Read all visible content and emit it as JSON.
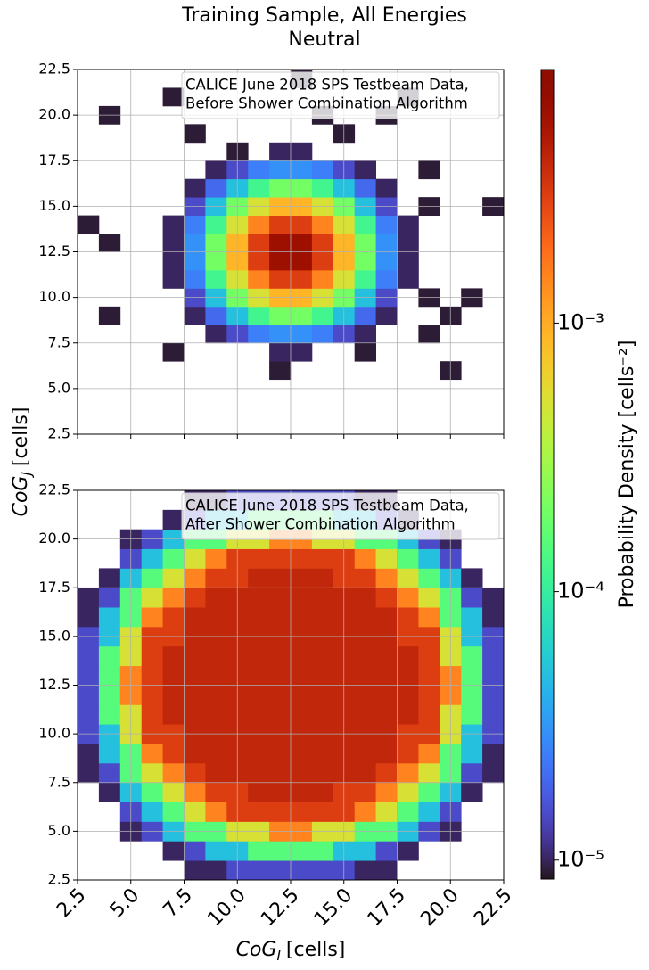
{
  "chart_data": {
    "type": "heatmap",
    "title": [
      "Training Sample, All Energies",
      "Neutral"
    ],
    "xlabel": {
      "symbol": "CoG",
      "subscript": "I",
      "unit": "[cells]"
    },
    "ylabel": {
      "symbol": "CoG",
      "subscript": "J",
      "unit": "[cells]"
    },
    "xlim": [
      2.5,
      22.5
    ],
    "ylim": [
      2.5,
      22.5
    ],
    "xticks": [
      2.5,
      {
        "value": 5,
        "label": "5.0"
      },
      7.5,
      {
        "value": 10,
        "label": "10.0"
      },
      12.5,
      {
        "value": 15,
        "label": "15.0"
      },
      17.5,
      {
        "value": 20,
        "label": "20.0"
      },
      22.5
    ],
    "yticks": [
      2.5,
      {
        "value": 5,
        "label": "5.0"
      },
      7.5,
      {
        "value": 10,
        "label": "10.0"
      },
      12.5,
      {
        "value": 15,
        "label": "15.0"
      },
      17.5,
      {
        "value": 20,
        "label": "20.0"
      },
      22.5
    ],
    "xbins": [
      2.5,
      3.5,
      4.5,
      5.5,
      6.5,
      7.5,
      8.5,
      9.5,
      10.5,
      11.5,
      12.5,
      13.5,
      14.5,
      15.5,
      16.5,
      17.5,
      18.5,
      19.5,
      20.5,
      21.5,
      22.5
    ],
    "ybins": [
      2.5,
      3.5,
      4.5,
      5.5,
      6.5,
      7.5,
      8.5,
      9.5,
      10.5,
      11.5,
      12.5,
      13.5,
      14.5,
      15.5,
      16.5,
      17.5,
      18.5,
      19.5,
      20.5,
      21.5,
      22.5
    ],
    "grid": true,
    "colormap": "turbo",
    "colorbar": {
      "label": "Probability Density [cells⁻²]",
      "scale": "log",
      "lim": [
        8.5e-06,
        0.0088
      ],
      "ticks": [
        {
          "value": 1e-05,
          "label": "10⁻⁵"
        },
        {
          "value": 0.0001,
          "label": "10⁻⁴"
        },
        {
          "value": 0.001,
          "label": "10⁻³"
        }
      ]
    },
    "panels": [
      {
        "annotation": [
          "CALICE June 2018 SPS Testbeam Data,",
          "Before Shower Combination Algorithm"
        ],
        "z": [
          [
            null,
            null,
            null,
            null,
            null,
            null,
            null,
            null,
            null,
            null,
            null,
            null,
            null,
            null,
            null,
            null,
            null,
            null,
            null,
            null
          ],
          [
            null,
            null,
            null,
            null,
            null,
            null,
            null,
            null,
            null,
            null,
            null,
            null,
            null,
            null,
            null,
            null,
            null,
            null,
            null,
            null
          ],
          [
            null,
            null,
            null,
            null,
            null,
            null,
            null,
            null,
            null,
            null,
            null,
            null,
            null,
            null,
            null,
            null,
            null,
            null,
            null,
            null
          ],
          [
            null,
            null,
            null,
            null,
            null,
            null,
            null,
            null,
            null,
            9e-06,
            null,
            null,
            null,
            null,
            null,
            null,
            null,
            9e-06,
            null,
            null
          ],
          [
            null,
            null,
            null,
            null,
            9e-06,
            null,
            null,
            null,
            null,
            1e-05,
            1e-05,
            null,
            null,
            9e-06,
            null,
            null,
            null,
            null,
            null,
            null
          ],
          [
            null,
            null,
            null,
            null,
            null,
            null,
            1e-05,
            1.5e-05,
            2.5e-05,
            3e-05,
            3e-05,
            2.5e-05,
            1.5e-05,
            1e-05,
            null,
            null,
            9e-06,
            null,
            null,
            null
          ],
          [
            null,
            9e-06,
            null,
            null,
            null,
            1e-05,
            2e-05,
            5e-05,
            0.00012,
            0.0002,
            0.0002,
            0.00012,
            5e-05,
            2e-05,
            1e-05,
            null,
            null,
            9e-06,
            null,
            null
          ],
          [
            null,
            null,
            null,
            null,
            null,
            1.5e-05,
            5e-05,
            0.0002,
            0.0005,
            0.0009,
            0.0009,
            0.0005,
            0.0002,
            5e-05,
            1.5e-05,
            null,
            9e-06,
            null,
            9e-06,
            null
          ],
          [
            null,
            null,
            null,
            null,
            1e-05,
            2.5e-05,
            0.00012,
            0.0005,
            0.0015,
            0.003,
            0.003,
            0.0015,
            0.0005,
            0.00012,
            2.5e-05,
            1e-05,
            null,
            null,
            null,
            null
          ],
          [
            null,
            null,
            null,
            null,
            1e-05,
            3e-05,
            0.0002,
            0.0009,
            0.003,
            0.006,
            0.006,
            0.003,
            0.0009,
            0.0002,
            3e-05,
            1e-05,
            null,
            null,
            null,
            null
          ],
          [
            null,
            9e-06,
            null,
            null,
            1e-05,
            3e-05,
            0.0002,
            0.0009,
            0.003,
            0.006,
            0.006,
            0.003,
            0.0009,
            0.0002,
            3e-05,
            1e-05,
            null,
            null,
            null,
            null
          ],
          [
            9e-06,
            null,
            null,
            null,
            1e-05,
            2.5e-05,
            0.00012,
            0.0005,
            0.0015,
            0.003,
            0.003,
            0.0015,
            0.0005,
            0.00012,
            2.5e-05,
            1e-05,
            null,
            null,
            null,
            null
          ],
          [
            null,
            null,
            null,
            null,
            null,
            1.5e-05,
            5e-05,
            0.0002,
            0.0005,
            0.0009,
            0.0009,
            0.0005,
            0.0002,
            5e-05,
            1.5e-05,
            null,
            9e-06,
            null,
            null,
            9e-06
          ],
          [
            null,
            null,
            null,
            null,
            null,
            1e-05,
            2e-05,
            5e-05,
            0.00012,
            0.0002,
            0.0002,
            0.00012,
            5e-05,
            2e-05,
            1e-05,
            null,
            null,
            null,
            null,
            null
          ],
          [
            null,
            null,
            null,
            null,
            null,
            null,
            1e-05,
            1.5e-05,
            2.5e-05,
            3e-05,
            3e-05,
            2.5e-05,
            1.5e-05,
            1e-05,
            null,
            null,
            9e-06,
            null,
            null,
            null
          ],
          [
            null,
            null,
            null,
            null,
            null,
            null,
            null,
            9e-06,
            null,
            1e-05,
            1e-05,
            null,
            null,
            null,
            null,
            null,
            null,
            null,
            null,
            null
          ],
          [
            null,
            null,
            null,
            null,
            null,
            9e-06,
            null,
            null,
            null,
            null,
            null,
            null,
            9e-06,
            null,
            null,
            null,
            null,
            null,
            null,
            null
          ],
          [
            null,
            9e-06,
            null,
            null,
            null,
            null,
            null,
            null,
            null,
            null,
            null,
            9e-06,
            null,
            null,
            9e-06,
            null,
            null,
            null,
            null,
            null
          ],
          [
            null,
            null,
            null,
            null,
            9e-06,
            null,
            null,
            null,
            null,
            null,
            null,
            null,
            null,
            null,
            null,
            9e-06,
            null,
            null,
            null,
            null
          ],
          [
            null,
            null,
            null,
            null,
            null,
            null,
            null,
            null,
            null,
            null,
            9e-06,
            null,
            null,
            null,
            null,
            null,
            null,
            null,
            null,
            null
          ]
        ]
      },
      {
        "annotation": [
          "CALICE June 2018 SPS Testbeam Data,",
          "After Shower Combination Algorithm"
        ],
        "z": [
          [
            null,
            null,
            null,
            null,
            null,
            1e-05,
            1e-05,
            1.5e-05,
            1.5e-05,
            1.5e-05,
            1.5e-05,
            1.5e-05,
            1.5e-05,
            1e-05,
            1e-05,
            null,
            null,
            null,
            null,
            null
          ],
          [
            null,
            null,
            null,
            null,
            1e-05,
            1.5e-05,
            5e-05,
            5e-05,
            0.00015,
            0.00015,
            0.00015,
            0.00015,
            5e-05,
            5e-05,
            1.5e-05,
            1e-05,
            null,
            null,
            null,
            null
          ],
          [
            null,
            null,
            1e-05,
            1.5e-05,
            5e-05,
            0.00015,
            0.00015,
            0.0005,
            0.0005,
            0.0015,
            0.0015,
            0.0005,
            0.0005,
            0.00015,
            0.00015,
            5e-05,
            1.5e-05,
            1e-05,
            null,
            null
          ],
          [
            null,
            null,
            1.5e-05,
            5e-05,
            0.00015,
            0.0005,
            0.0015,
            0.003,
            0.003,
            0.003,
            0.003,
            0.003,
            0.003,
            0.0015,
            0.0005,
            0.00015,
            5e-05,
            1.5e-05,
            null,
            null
          ],
          [
            null,
            1e-05,
            5e-05,
            0.00015,
            0.0005,
            0.0015,
            0.003,
            0.003,
            0.004,
            0.004,
            0.004,
            0.004,
            0.003,
            0.003,
            0.0015,
            0.0005,
            0.00015,
            5e-05,
            1e-05,
            null
          ],
          [
            1e-05,
            1.5e-05,
            0.00015,
            0.0005,
            0.0015,
            0.003,
            0.004,
            0.004,
            0.004,
            0.004,
            0.004,
            0.004,
            0.004,
            0.004,
            0.003,
            0.0015,
            0.0005,
            0.00015,
            1.5e-05,
            1e-05
          ],
          [
            1e-05,
            5e-05,
            0.00015,
            0.0015,
            0.003,
            0.004,
            0.004,
            0.004,
            0.004,
            0.004,
            0.004,
            0.004,
            0.004,
            0.004,
            0.004,
            0.003,
            0.0015,
            0.00015,
            5e-05,
            1e-05
          ],
          [
            1.5e-05,
            5e-05,
            0.0005,
            0.003,
            0.003,
            0.004,
            0.004,
            0.004,
            0.004,
            0.004,
            0.004,
            0.004,
            0.004,
            0.004,
            0.004,
            0.003,
            0.003,
            0.0005,
            5e-05,
            1.5e-05
          ],
          [
            1.5e-05,
            0.00015,
            0.0005,
            0.003,
            0.004,
            0.004,
            0.004,
            0.004,
            0.004,
            0.004,
            0.004,
            0.004,
            0.004,
            0.004,
            0.004,
            0.004,
            0.003,
            0.0005,
            0.00015,
            1.5e-05
          ],
          [
            1.5e-05,
            0.00015,
            0.0015,
            0.003,
            0.004,
            0.004,
            0.004,
            0.004,
            0.004,
            0.004,
            0.004,
            0.004,
            0.004,
            0.004,
            0.004,
            0.004,
            0.003,
            0.0015,
            0.00015,
            1.5e-05
          ],
          [
            1.5e-05,
            0.00015,
            0.0015,
            0.003,
            0.004,
            0.004,
            0.004,
            0.004,
            0.004,
            0.004,
            0.004,
            0.004,
            0.004,
            0.004,
            0.004,
            0.004,
            0.003,
            0.0015,
            0.00015,
            1.5e-05
          ],
          [
            1.5e-05,
            0.00015,
            0.0005,
            0.003,
            0.004,
            0.004,
            0.004,
            0.004,
            0.004,
            0.004,
            0.004,
            0.004,
            0.004,
            0.004,
            0.004,
            0.004,
            0.003,
            0.0005,
            0.00015,
            1.5e-05
          ],
          [
            1.5e-05,
            5e-05,
            0.0005,
            0.003,
            0.003,
            0.004,
            0.004,
            0.004,
            0.004,
            0.004,
            0.004,
            0.004,
            0.004,
            0.004,
            0.004,
            0.003,
            0.003,
            0.0005,
            5e-05,
            1.5e-05
          ],
          [
            1e-05,
            5e-05,
            0.00015,
            0.0015,
            0.003,
            0.004,
            0.004,
            0.004,
            0.004,
            0.004,
            0.004,
            0.004,
            0.004,
            0.004,
            0.004,
            0.003,
            0.0015,
            0.00015,
            5e-05,
            1e-05
          ],
          [
            1e-05,
            1.5e-05,
            0.00015,
            0.0005,
            0.0015,
            0.003,
            0.004,
            0.004,
            0.004,
            0.004,
            0.004,
            0.004,
            0.004,
            0.004,
            0.003,
            0.0015,
            0.0005,
            0.00015,
            1.5e-05,
            1e-05
          ],
          [
            null,
            1e-05,
            5e-05,
            0.00015,
            0.0005,
            0.0015,
            0.003,
            0.003,
            0.004,
            0.004,
            0.004,
            0.004,
            0.003,
            0.003,
            0.0015,
            0.0005,
            0.00015,
            5e-05,
            1e-05,
            null
          ],
          [
            null,
            null,
            1.5e-05,
            5e-05,
            0.00015,
            0.0005,
            0.0015,
            0.003,
            0.003,
            0.003,
            0.003,
            0.003,
            0.003,
            0.0015,
            0.0005,
            0.00015,
            5e-05,
            1.5e-05,
            null,
            null
          ],
          [
            null,
            null,
            1e-05,
            1.5e-05,
            5e-05,
            0.00015,
            0.00015,
            0.0005,
            0.0005,
            0.0015,
            0.0015,
            0.0005,
            0.0005,
            0.00015,
            0.00015,
            5e-05,
            1.5e-05,
            1e-05,
            null,
            null
          ],
          [
            null,
            null,
            null,
            null,
            1e-05,
            1.5e-05,
            5e-05,
            5e-05,
            0.00015,
            0.00015,
            0.00015,
            0.00015,
            5e-05,
            5e-05,
            1.5e-05,
            1e-05,
            null,
            null,
            null,
            null
          ],
          [
            null,
            null,
            null,
            null,
            null,
            1e-05,
            1e-05,
            1.5e-05,
            1.5e-05,
            1.5e-05,
            1.5e-05,
            1.5e-05,
            1.5e-05,
            1e-05,
            1e-05,
            null,
            null,
            null,
            null,
            null
          ]
        ]
      }
    ]
  }
}
